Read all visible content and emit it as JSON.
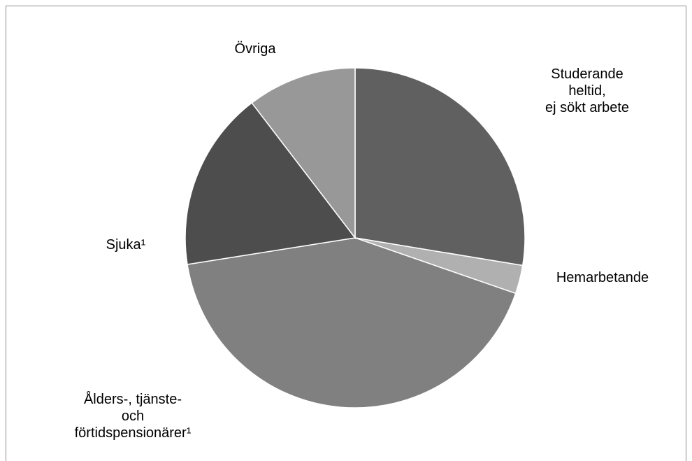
{
  "chart_data": {
    "type": "pie",
    "categories": [
      "Studerande heltid,\nej sökt arbete",
      "Hemarbetande",
      "Ålders-, tjänste-\noch\nförtidspensionärer¹",
      "Sjuka¹",
      "Övriga"
    ],
    "values": [
      27.6,
      2.7,
      42.2,
      17.1,
      10.4
    ],
    "colors": [
      "#606060",
      "#b0b0b0",
      "#808080",
      "#4d4d4d",
      "#989898"
    ]
  }
}
